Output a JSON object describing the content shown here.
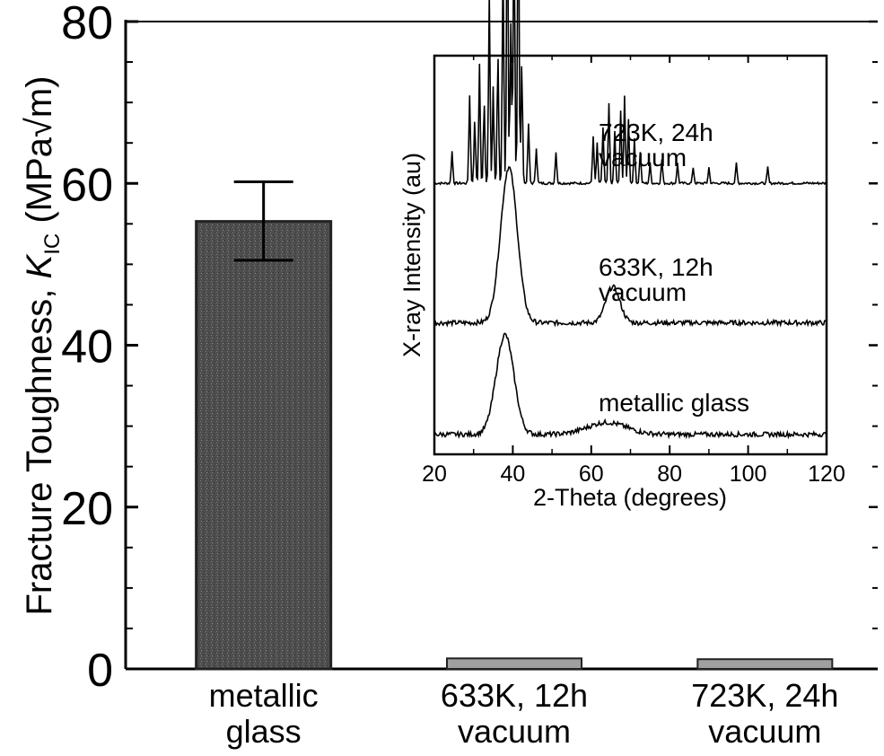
{
  "chart_data": [
    {
      "type": "bar",
      "title": "",
      "ylabel": {
        "prefix": "Fracture Toughness, ",
        "symbol": "K",
        "subscript": "IC",
        "unit": " (MPa√m)"
      },
      "ylim": [
        0,
        80
      ],
      "yticks": [
        "0",
        "20",
        "40",
        "60",
        "80"
      ],
      "categories": [
        [
          "metallic",
          "glass"
        ],
        [
          "633K, 12h",
          "vacuum"
        ],
        [
          "723K, 24h",
          "vacuum"
        ]
      ],
      "values": [
        55.3,
        1.3,
        1.2
      ],
      "error_bar": {
        "category_index": 0,
        "low": 50.5,
        "high": 60.2
      },
      "colors": {
        "bar_main": "#555555",
        "bar_thin": "#a0a0a0",
        "axis": "#000000"
      }
    },
    {
      "type": "line",
      "title": "",
      "xlabel": "2-Theta (degrees)",
      "ylabel": "X-ray Intensity (au)",
      "xlim": [
        20,
        120
      ],
      "xticks": [
        "20",
        "40",
        "60",
        "80",
        "100",
        "120"
      ],
      "series": [
        {
          "name": [
            "723K, 24h",
            "vacuum"
          ],
          "baseline": 0.68,
          "peaks": [
            [
              24.5,
              0.08
            ],
            [
              29.0,
              0.22
            ],
            [
              30.3,
              0.16
            ],
            [
              31.5,
              0.3
            ],
            [
              32.7,
              0.2
            ],
            [
              34.0,
              0.48
            ],
            [
              35.0,
              0.24
            ],
            [
              36.2,
              0.32
            ],
            [
              37.5,
              0.57
            ],
            [
              38.6,
              0.75
            ],
            [
              39.5,
              0.4
            ],
            [
              40.3,
              0.7
            ],
            [
              41.4,
              0.78
            ],
            [
              42.3,
              0.3
            ],
            [
              44.0,
              0.15
            ],
            [
              46.0,
              0.09
            ],
            [
              51.0,
              0.08
            ],
            [
              60.5,
              0.12
            ],
            [
              61.5,
              0.1
            ],
            [
              63.0,
              0.14
            ],
            [
              64.5,
              0.2
            ],
            [
              66.0,
              0.13
            ],
            [
              67.5,
              0.18
            ],
            [
              68.5,
              0.22
            ],
            [
              69.5,
              0.16
            ],
            [
              71.0,
              0.11
            ],
            [
              72.5,
              0.08
            ],
            [
              75.0,
              0.05
            ],
            [
              78.0,
              0.06
            ],
            [
              82.0,
              0.05
            ],
            [
              86.0,
              0.04
            ],
            [
              90.0,
              0.04
            ],
            [
              97.0,
              0.05
            ],
            [
              105.0,
              0.04
            ]
          ]
        },
        {
          "name": [
            "633K, 12h",
            "vacuum"
          ],
          "baseline": 0.33,
          "humps": [
            [
              39.0,
              0.39,
              3.0
            ],
            [
              65.5,
              0.09,
              2.5
            ]
          ]
        },
        {
          "name": [
            "metallic glass"
          ],
          "baseline": 0.05,
          "humps": [
            [
              38.0,
              0.25,
              3.2
            ],
            [
              64.0,
              0.03,
              7.0
            ]
          ]
        }
      ]
    }
  ]
}
